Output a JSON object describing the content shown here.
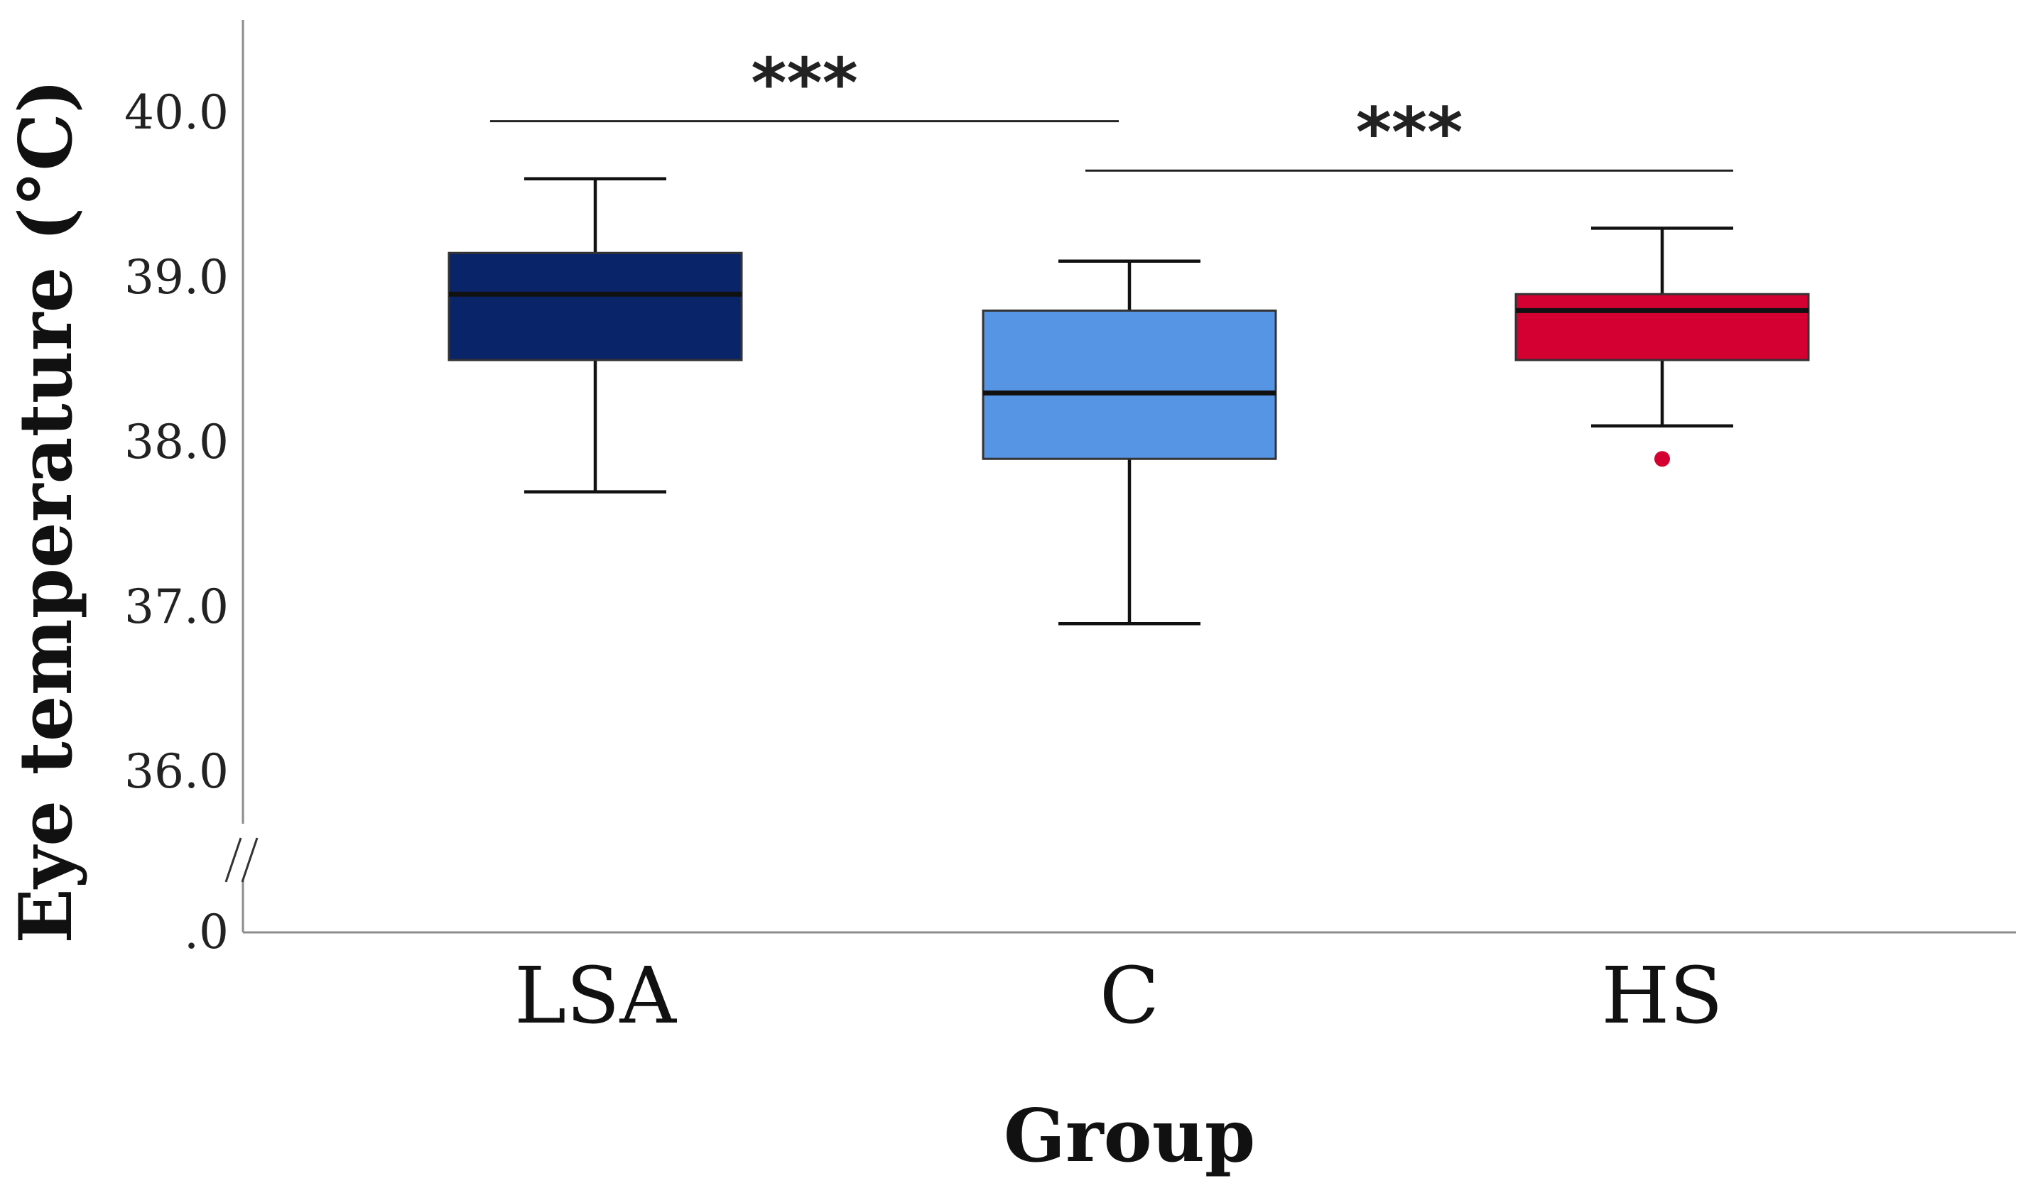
{
  "chart_data": {
    "type": "box",
    "title": "",
    "xlabel": "Group",
    "ylabel": "Eye temperature (°C)",
    "ylim": [
      35.8,
      40.55
    ],
    "axis_break": true,
    "axis_zero_label": ".0",
    "yticks": [
      {
        "value": 36.0,
        "label": "36.0"
      },
      {
        "value": 37.0,
        "label": "37.0"
      },
      {
        "value": 38.0,
        "label": "38.0"
      },
      {
        "value": 39.0,
        "label": "39.0"
      },
      {
        "value": 40.0,
        "label": "40.0"
      }
    ],
    "grid": false,
    "legend": "none",
    "groups": [
      {
        "name": "LSA",
        "color": "#0a246a",
        "whisker_low": 37.7,
        "q1": 38.5,
        "median": 38.9,
        "q3": 39.15,
        "whisker_high": 39.6,
        "outliers": []
      },
      {
        "name": "C",
        "color": "#5595e3",
        "whisker_low": 36.9,
        "q1": 37.9,
        "median": 38.3,
        "q3": 38.8,
        "whisker_high": 39.1,
        "outliers": []
      },
      {
        "name": "HS",
        "color": "#d50032",
        "whisker_low": 38.1,
        "q1": 38.5,
        "median": 38.8,
        "q3": 38.9,
        "whisker_high": 39.3,
        "outliers": [
          37.9
        ]
      }
    ],
    "significance": [
      {
        "from": "LSA",
        "to": "C",
        "label": "***",
        "y": 39.95
      },
      {
        "from": "C",
        "to": "HS",
        "label": "***",
        "y": 39.65
      }
    ]
  }
}
